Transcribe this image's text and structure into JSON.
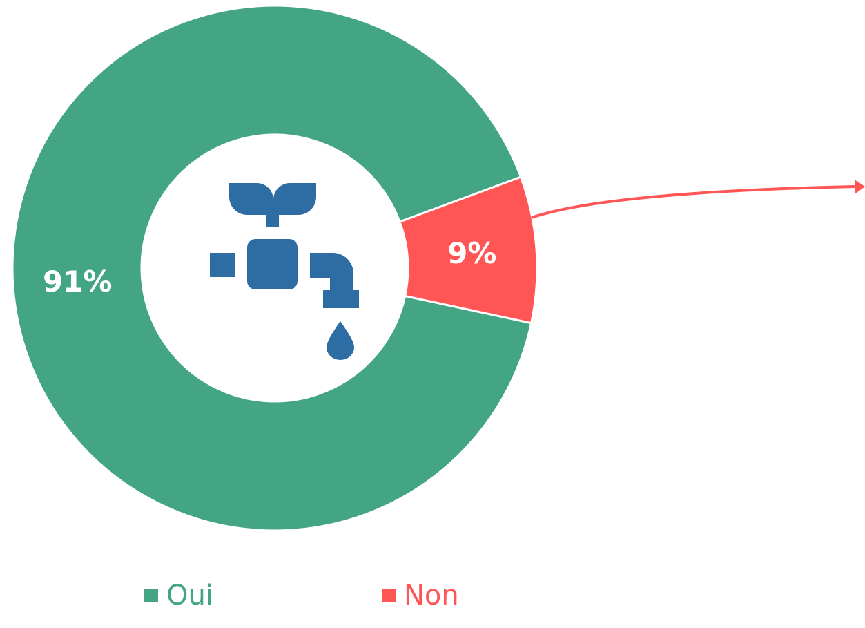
{
  "chart_data": {
    "type": "pie",
    "categories": [
      "Oui",
      "Non"
    ],
    "values": [
      91,
      9
    ],
    "value_labels": [
      "91%",
      "9%"
    ],
    "colors": [
      "#43a583",
      "#ff5555"
    ]
  }
}
